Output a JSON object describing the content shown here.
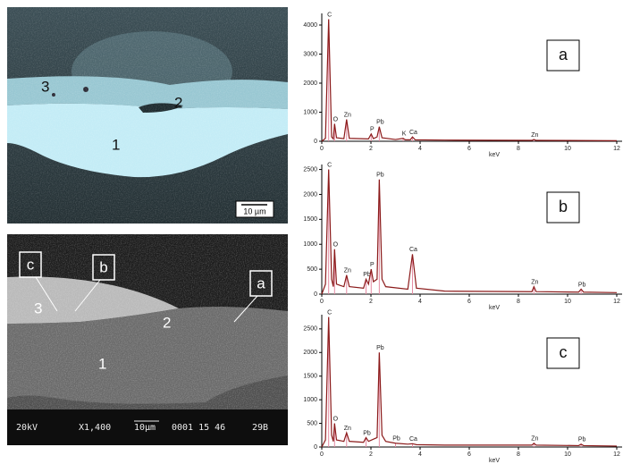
{
  "micrograph_optical": {
    "labels": [
      "3",
      "2",
      "1"
    ],
    "scale_bar": "10 µm"
  },
  "micrograph_sem": {
    "boxes": [
      "c",
      "b",
      "a"
    ],
    "labels": [
      "3",
      "2",
      "1"
    ],
    "footer": [
      "20kV",
      "X1,400",
      "10µm",
      "0001 15 46",
      "29B"
    ]
  },
  "chart_data": [
    {
      "type": "line",
      "panel_label": "a",
      "xlabel": "keV",
      "color": "#8b1a1a",
      "marker_color": "#e58ba3",
      "x": [
        0,
        0.15,
        0.28,
        0.4,
        0.47,
        0.52,
        0.6,
        0.9,
        1.01,
        1.12,
        1.9,
        2.01,
        2.1,
        2.25,
        2.34,
        2.45,
        3.0,
        3.31,
        3.4,
        3.6,
        3.69,
        3.8,
        5,
        8.55,
        8.63,
        8.72,
        12
      ],
      "values": [
        0,
        100,
        4200,
        150,
        80,
        600,
        120,
        90,
        750,
        100,
        80,
        250,
        90,
        150,
        500,
        120,
        60,
        100,
        50,
        50,
        150,
        50,
        40,
        30,
        60,
        30,
        20
      ],
      "peaks": [
        {
          "label": "C",
          "x": 0.28,
          "y": 4200
        },
        {
          "label": "O",
          "x": 0.52,
          "y": 600
        },
        {
          "label": "Zn",
          "x": 1.01,
          "y": 750
        },
        {
          "label": "P",
          "x": 2.01,
          "y": 250
        },
        {
          "label": "Pb",
          "x": 2.34,
          "y": 500
        },
        {
          "label": "K",
          "x": 3.31,
          "y": 100
        },
        {
          "label": "Ca",
          "x": 3.69,
          "y": 150
        },
        {
          "label": "Zn",
          "x": 8.63,
          "y": 60
        }
      ],
      "xlim": [
        0,
        12
      ],
      "xticks": [
        0,
        2,
        4,
        6,
        8,
        10,
        12
      ],
      "ylim": [
        0,
        4400
      ],
      "yticks": [
        0,
        1000,
        2000,
        3000,
        4000
      ]
    },
    {
      "type": "line",
      "panel_label": "b",
      "xlabel": "keV",
      "color": "#8b1a1a",
      "marker_color": "#e58ba3",
      "x": [
        0,
        0.15,
        0.28,
        0.4,
        0.47,
        0.52,
        0.6,
        0.9,
        1.01,
        1.12,
        1.7,
        1.8,
        1.9,
        2.01,
        2.1,
        2.25,
        2.34,
        2.45,
        2.6,
        3.5,
        3.69,
        3.85,
        5,
        8.55,
        8.63,
        8.72,
        10.45,
        10.55,
        10.65,
        12
      ],
      "values": [
        0,
        200,
        2500,
        300,
        150,
        900,
        200,
        150,
        380,
        150,
        120,
        300,
        200,
        500,
        250,
        300,
        2300,
        300,
        150,
        100,
        800,
        120,
        60,
        50,
        150,
        50,
        40,
        100,
        40,
        30
      ],
      "peaks": [
        {
          "label": "C",
          "x": 0.28,
          "y": 2500
        },
        {
          "label": "O",
          "x": 0.52,
          "y": 900
        },
        {
          "label": "Zn",
          "x": 1.01,
          "y": 380
        },
        {
          "label": "Pb",
          "x": 1.8,
          "y": 300
        },
        {
          "label": "P",
          "x": 2.01,
          "y": 500
        },
        {
          "label": "Pb",
          "x": 2.34,
          "y": 2300
        },
        {
          "label": "Ca",
          "x": 3.69,
          "y": 800
        },
        {
          "label": "Zn",
          "x": 8.63,
          "y": 150
        },
        {
          "label": "Pb",
          "x": 10.55,
          "y": 100
        }
      ],
      "xlim": [
        0,
        12
      ],
      "xticks": [
        0,
        2,
        4,
        6,
        8,
        10,
        12
      ],
      "ylim": [
        0,
        2600
      ],
      "yticks": [
        0,
        500,
        1000,
        1500,
        2000,
        2500
      ]
    },
    {
      "type": "line",
      "panel_label": "c",
      "xlabel": "keV",
      "color": "#8b1a1a",
      "marker_color": "#e58ba3",
      "x": [
        0,
        0.15,
        0.28,
        0.4,
        0.47,
        0.52,
        0.6,
        0.9,
        1.01,
        1.12,
        1.7,
        1.8,
        1.9,
        2.25,
        2.34,
        2.45,
        2.6,
        3.0,
        3.5,
        3.69,
        3.85,
        5,
        8.55,
        8.63,
        8.72,
        10.45,
        10.55,
        10.65,
        12
      ],
      "values": [
        0,
        150,
        2750,
        250,
        120,
        500,
        150,
        120,
        300,
        120,
        100,
        200,
        120,
        200,
        2000,
        250,
        120,
        80,
        60,
        70,
        50,
        40,
        40,
        80,
        40,
        30,
        60,
        30,
        20
      ],
      "peaks": [
        {
          "label": "C",
          "x": 0.28,
          "y": 2750
        },
        {
          "label": "O",
          "x": 0.52,
          "y": 500
        },
        {
          "label": "Zn",
          "x": 1.01,
          "y": 300
        },
        {
          "label": "Pb",
          "x": 1.8,
          "y": 200
        },
        {
          "label": "Pb",
          "x": 2.34,
          "y": 2000
        },
        {
          "label": "Pb",
          "x": 3.0,
          "y": 80
        },
        {
          "label": "Ca",
          "x": 3.69,
          "y": 70
        },
        {
          "label": "Zn",
          "x": 8.63,
          "y": 80
        },
        {
          "label": "Pb",
          "x": 10.55,
          "y": 60
        }
      ],
      "xlim": [
        0,
        12
      ],
      "xticks": [
        0,
        2,
        4,
        6,
        8,
        10,
        12
      ],
      "ylim": [
        0,
        2800
      ],
      "yticks": [
        0,
        500,
        1000,
        1500,
        2000,
        2500
      ]
    }
  ]
}
